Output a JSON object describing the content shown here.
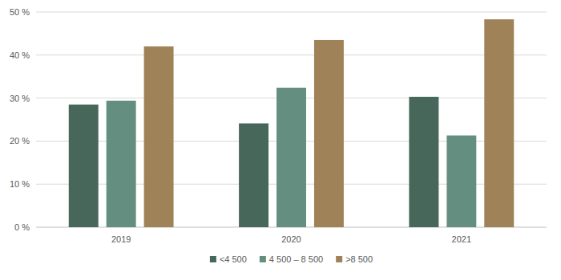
{
  "chart_data": {
    "type": "bar",
    "categories": [
      "2019",
      "2020",
      "2021"
    ],
    "series": [
      {
        "name": "<4 500",
        "color": "#46675a",
        "values": [
          28.5,
          24.1,
          30.3
        ]
      },
      {
        "name": "4 500 – 8 500",
        "color": "#648f80",
        "values": [
          29.4,
          32.4,
          21.3
        ]
      },
      {
        "name": ">8 500",
        "color": "#a08258",
        "values": [
          42.0,
          43.5,
          48.3
        ]
      }
    ],
    "ylim": [
      0,
      50
    ],
    "yticks": [
      {
        "value": 0,
        "label": "0 %"
      },
      {
        "value": 10,
        "label": "10 %"
      },
      {
        "value": 20,
        "label": "20 %"
      },
      {
        "value": 30,
        "label": "30 %"
      },
      {
        "value": 40,
        "label": "40 %"
      },
      {
        "value": 50,
        "label": "50 %"
      }
    ],
    "grid": true,
    "legend": "bottom"
  }
}
